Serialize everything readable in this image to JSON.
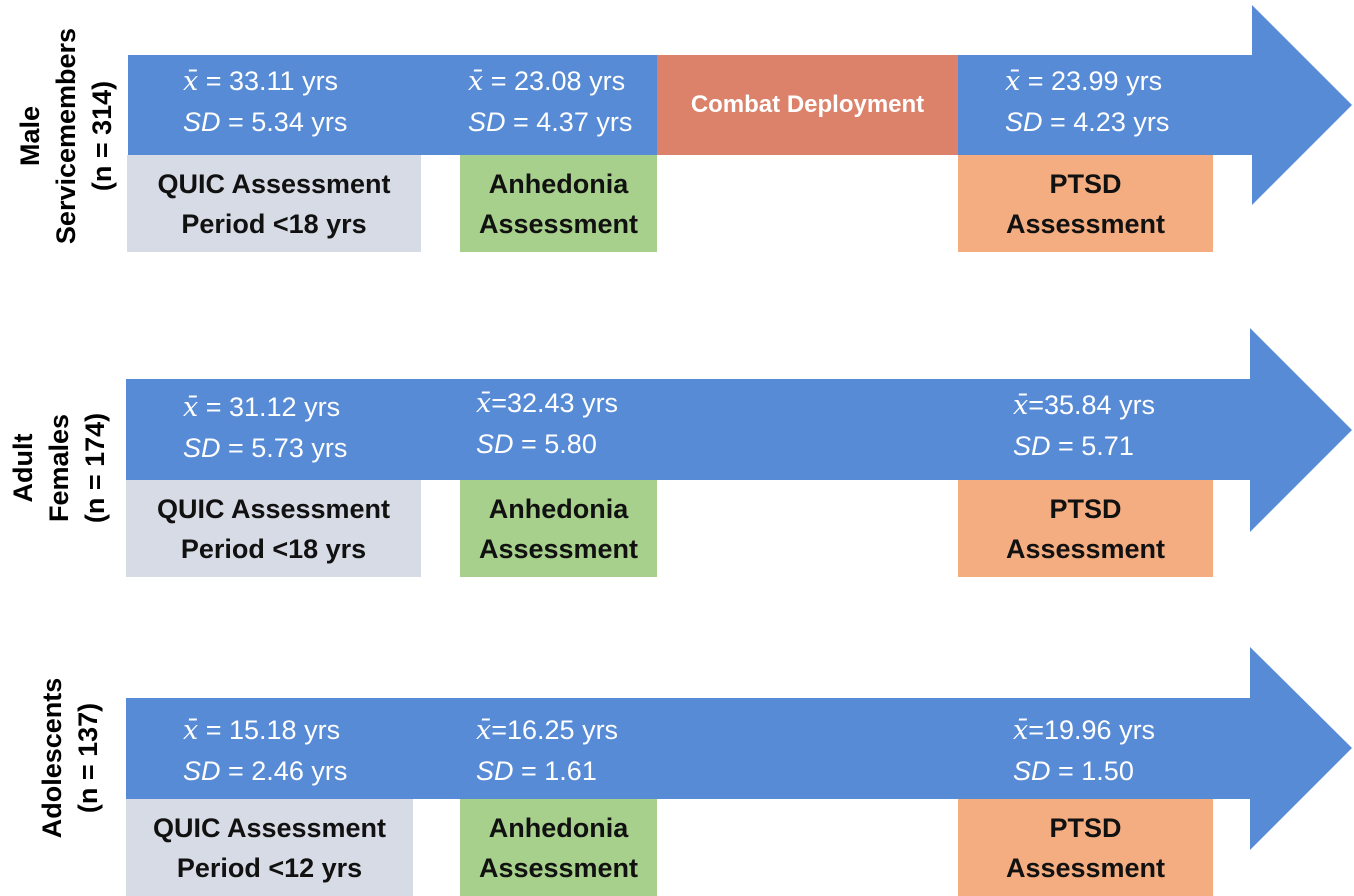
{
  "colors": {
    "arrow": "#578bd6",
    "quic_box": "#d7dbe5",
    "anhedonia_box": "#a7d08c",
    "ptsd_box": "#f3ad81",
    "combat_box": "#dc826a"
  },
  "xbar_symbol": "x̄",
  "cohorts": [
    {
      "label_line1": "Male",
      "label_line2": "Servicemembers",
      "label_line3": "(n = 314)",
      "stats": [
        {
          "mean": " = 33.11 yrs",
          "sd": " = 5.34 yrs"
        },
        {
          "mean": " = 23.08 yrs",
          "sd": " = 4.37 yrs"
        },
        {
          "mean": " = 23.99 yrs",
          "sd": " = 4.23 yrs"
        }
      ],
      "combat_label": "Combat Deployment",
      "quic": {
        "line1": "QUIC Assessment",
        "line2": "Period <18 yrs"
      },
      "anhedonia": {
        "line1": "Anhedonia",
        "line2": "Assessment"
      },
      "ptsd": {
        "line1": "PTSD",
        "line2": "Assessment"
      }
    },
    {
      "label_line1": "Adult",
      "label_line2": "Females",
      "label_line3": "(n = 174)",
      "stats": [
        {
          "mean": " = 31.12 yrs",
          "sd": " = 5.73 yrs"
        },
        {
          "mean": "=32.43 yrs",
          "sd": " = 5.80"
        },
        {
          "mean": "=35.84 yrs",
          "sd": " = 5.71"
        }
      ],
      "quic": {
        "line1": "QUIC Assessment",
        "line2": "Period <18 yrs"
      },
      "anhedonia": {
        "line1": "Anhedonia",
        "line2": "Assessment"
      },
      "ptsd": {
        "line1": "PTSD",
        "line2": "Assessment"
      }
    },
    {
      "label_line1": "Adolescents",
      "label_line2": "(n = 137)",
      "stats": [
        {
          "mean": " = 15.18 yrs",
          "sd": " = 2.46 yrs"
        },
        {
          "mean": "=16.25 yrs",
          "sd": " = 1.61"
        },
        {
          "mean": "=19.96 yrs",
          "sd": " = 1.50"
        }
      ],
      "quic": {
        "line1": "QUIC Assessment",
        "line2": "Period <12 yrs"
      },
      "anhedonia": {
        "line1": "Anhedonia",
        "line2": "Assessment"
      },
      "ptsd": {
        "line1": "PTSD",
        "line2": "Assessment"
      }
    }
  ],
  "sd_label": "SD"
}
